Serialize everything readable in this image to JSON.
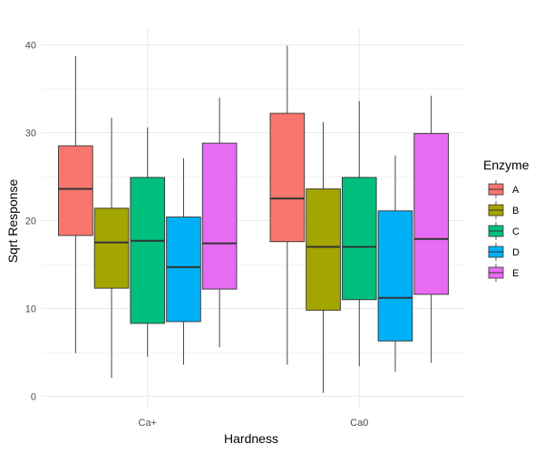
{
  "chart_data": {
    "type": "boxplot",
    "xlabel": "Hardness",
    "ylabel": "Sqrt Response",
    "categories": [
      "Ca+",
      "Ca0"
    ],
    "ylim": [
      -1.5,
      42
    ],
    "yticks": [
      0,
      10,
      20,
      30,
      40
    ],
    "grid": true,
    "legend": {
      "title": "Enzyme",
      "position": "right"
    },
    "series": [
      {
        "name": "A",
        "color": "#F8766D",
        "boxes": [
          {
            "category": "Ca+",
            "min": 4.9,
            "q1": 18.3,
            "median": 23.6,
            "q3": 28.5,
            "max": 38.7
          },
          {
            "category": "Ca0",
            "min": 3.6,
            "q1": 17.6,
            "median": 22.5,
            "q3": 32.2,
            "max": 39.9
          }
        ]
      },
      {
        "name": "B",
        "color": "#A3A500",
        "boxes": [
          {
            "category": "Ca+",
            "min": 2.1,
            "q1": 12.3,
            "median": 17.5,
            "q3": 21.4,
            "max": 31.7
          },
          {
            "category": "Ca0",
            "min": 0.4,
            "q1": 9.8,
            "median": 17.0,
            "q3": 23.6,
            "max": 31.2
          }
        ]
      },
      {
        "name": "C",
        "color": "#00BF7D",
        "boxes": [
          {
            "category": "Ca+",
            "min": 4.5,
            "q1": 8.3,
            "median": 17.7,
            "q3": 24.9,
            "max": 30.6
          },
          {
            "category": "Ca0",
            "min": 3.4,
            "q1": 11.0,
            "median": 17.0,
            "q3": 24.9,
            "max": 33.6
          }
        ]
      },
      {
        "name": "D",
        "color": "#00B0F6",
        "boxes": [
          {
            "category": "Ca+",
            "min": 3.6,
            "q1": 8.5,
            "median": 14.7,
            "q3": 20.4,
            "max": 27.1
          },
          {
            "category": "Ca0",
            "min": 2.8,
            "q1": 6.3,
            "median": 11.2,
            "q3": 21.1,
            "max": 27.4
          }
        ]
      },
      {
        "name": "E",
        "color": "#E76BF3",
        "boxes": [
          {
            "category": "Ca+",
            "min": 5.6,
            "q1": 12.2,
            "median": 17.4,
            "q3": 28.8,
            "max": 34.0
          },
          {
            "category": "Ca0",
            "min": 3.8,
            "q1": 11.6,
            "median": 17.9,
            "q3": 29.9,
            "max": 34.2
          }
        ]
      }
    ]
  }
}
